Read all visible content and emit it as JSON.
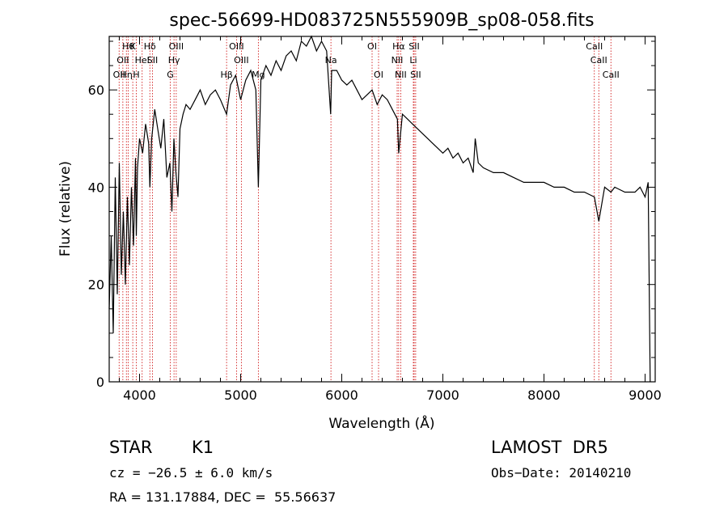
{
  "chart_data": {
    "type": "line",
    "title": "spec-56699-HD083725N555909B_sp08-058.fits",
    "xlabel": "Wavelength (Å)",
    "ylabel": "Flux (relative)",
    "xlim": [
      3700,
      9100
    ],
    "ylim": [
      0,
      71
    ],
    "xticks": [
      4000,
      5000,
      6000,
      7000,
      8000,
      9000
    ],
    "yticks": [
      0,
      20,
      40,
      60
    ],
    "grid": false,
    "line_color": "#000000",
    "marker_color": "#cc0000",
    "series": [
      {
        "x": [
          3700,
          3720,
          3740,
          3760,
          3780,
          3800,
          3820,
          3840,
          3860,
          3880,
          3900,
          3920,
          3940,
          3960,
          3968,
          3980,
          4000,
          4030,
          4060,
          4090,
          4102,
          4120,
          4150,
          4180,
          4210,
          4240,
          4270,
          4300,
          4320,
          4340,
          4360,
          4380,
          4400,
          4430,
          4460,
          4500,
          4550,
          4600,
          4650,
          4700,
          4750,
          4800,
          4861,
          4900,
          4950,
          5000,
          5050,
          5100,
          5150,
          5175,
          5200,
          5250,
          5300,
          5350,
          5400,
          5450,
          5500,
          5550,
          5600,
          5650,
          5700,
          5750,
          5800,
          5850,
          5890,
          5900,
          5950,
          6000,
          6050,
          6100,
          6150,
          6200,
          6250,
          6300,
          6350,
          6400,
          6450,
          6500,
          6550,
          6563,
          6600,
          6650,
          6700,
          6750,
          6800,
          6850,
          6900,
          6950,
          7000,
          7050,
          7100,
          7150,
          7200,
          7250,
          7300,
          7320,
          7350,
          7400,
          7500,
          7600,
          7700,
          7800,
          7900,
          8000,
          8100,
          8200,
          8300,
          8400,
          8498,
          8542,
          8600,
          8662,
          8700,
          8800,
          8900,
          8950,
          9000,
          9030,
          9050
        ],
        "y": [
          15,
          30,
          10,
          42,
          18,
          45,
          22,
          35,
          20,
          38,
          24,
          40,
          28,
          46,
          30,
          44,
          50,
          47,
          53,
          49,
          40,
          50,
          56,
          52,
          48,
          54,
          42,
          45,
          35,
          50,
          43,
          38,
          52,
          55,
          57,
          56,
          58,
          60,
          57,
          59,
          60,
          58,
          55,
          61,
          63,
          58,
          62,
          64,
          60,
          40,
          62,
          65,
          63,
          66,
          64,
          67,
          68,
          66,
          70,
          69,
          71,
          68,
          70,
          68,
          55,
          64,
          64,
          62,
          61,
          62,
          60,
          58,
          59,
          60,
          57,
          59,
          58,
          56,
          54,
          47,
          55,
          54,
          53,
          52,
          51,
          50,
          49,
          48,
          47,
          48,
          46,
          47,
          45,
          46,
          43,
          50,
          45,
          44,
          43,
          43,
          42,
          41,
          41,
          41,
          40,
          40,
          39,
          39,
          38,
          33,
          40,
          39,
          40,
          39,
          39,
          40,
          38,
          41,
          0
        ]
      }
    ],
    "line_markers": [
      {
        "wave": 3798,
        "label": "OII",
        "row": 3
      },
      {
        "wave": 3835,
        "label": "OII",
        "row": 2
      },
      {
        "wave": 3870,
        "label": "Hη",
        "row": 3
      },
      {
        "wave": 3889,
        "label": "Hθ",
        "row": 1
      },
      {
        "wave": 3933,
        "label": "K",
        "row": 1
      },
      {
        "wave": 3968,
        "label": "H",
        "row": 3
      },
      {
        "wave": 4026,
        "label": "HeI",
        "row": 2
      },
      {
        "wave": 4102,
        "label": "Hδ",
        "row": 1
      },
      {
        "wave": 4128,
        "label": "SII",
        "row": 2
      },
      {
        "wave": 4304,
        "label": "G",
        "row": 3
      },
      {
        "wave": 4341,
        "label": "Hγ",
        "row": 2
      },
      {
        "wave": 4363,
        "label": "OIII",
        "row": 1
      },
      {
        "wave": 4861,
        "label": "Hβ",
        "row": 3
      },
      {
        "wave": 4959,
        "label": "OIII",
        "row": 1
      },
      {
        "wave": 5007,
        "label": "OIII",
        "row": 2
      },
      {
        "wave": 5175,
        "label": "Mg",
        "row": 3
      },
      {
        "wave": 5893,
        "label": "Na",
        "row": 2
      },
      {
        "wave": 6300,
        "label": "OI",
        "row": 1
      },
      {
        "wave": 6364,
        "label": "OI",
        "row": 3
      },
      {
        "wave": 6548,
        "label": "NII",
        "row": 2
      },
      {
        "wave": 6563,
        "label": "Hα",
        "row": 1
      },
      {
        "wave": 6583,
        "label": "NII",
        "row": 3
      },
      {
        "wave": 6708,
        "label": "Li",
        "row": 2
      },
      {
        "wave": 6716,
        "label": "SII",
        "row": 1
      },
      {
        "wave": 6731,
        "label": "SII",
        "row": 3
      },
      {
        "wave": 8498,
        "label": "CaII",
        "row": 1
      },
      {
        "wave": 8542,
        "label": "CaII",
        "row": 2
      },
      {
        "wave": 8662,
        "label": "CaII",
        "row": 3
      }
    ]
  },
  "info": {
    "object_class": "STAR",
    "subclass": "K1",
    "survey": "LAMOST  DR5",
    "cz": "cz = −26.5 ± 6.0 km/s",
    "obs_date": "Obs−Date: 20140210",
    "radec": "RA = 131.17884, DEC =  55.56637"
  }
}
